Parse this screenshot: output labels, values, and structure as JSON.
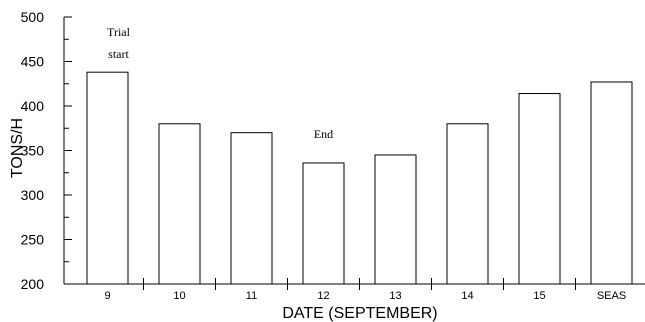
{
  "chart_data": {
    "type": "bar",
    "categories": [
      "9",
      "10",
      "11",
      "12",
      "13",
      "14",
      "15",
      "SEAS"
    ],
    "values": [
      438,
      380,
      370,
      336,
      345,
      380,
      414,
      427
    ],
    "xlabel": "DATE (SEPTEMBER)",
    "ylabel": "TONS/H",
    "ylim": [
      200,
      500
    ],
    "yticks": [
      200,
      250,
      300,
      350,
      400,
      450,
      500
    ],
    "grid": false,
    "annotations": [
      {
        "lines": [
          "Trial",
          "start"
        ],
        "category": "9"
      },
      {
        "lines": [
          "End"
        ],
        "category": "12"
      }
    ]
  }
}
